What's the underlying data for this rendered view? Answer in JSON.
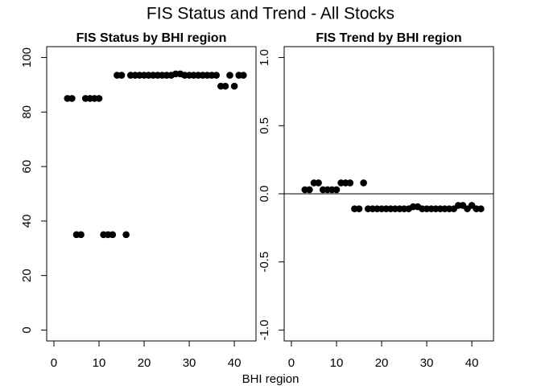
{
  "title": "FIS Status and Trend - All Stocks",
  "xlabel": "BHI region",
  "chart_data": [
    {
      "type": "scatter",
      "title": "FIS Status by BHI region",
      "color": "#000000",
      "x": [
        3,
        4,
        5,
        6,
        7,
        8,
        9,
        10,
        11,
        12,
        13,
        14,
        15,
        16,
        17,
        18,
        19,
        20,
        21,
        22,
        23,
        24,
        25,
        26,
        27,
        28,
        29,
        30,
        31,
        32,
        33,
        34,
        35,
        36,
        37,
        38,
        39,
        40,
        41,
        42
      ],
      "values": [
        85,
        85,
        35,
        35,
        85,
        85,
        85,
        85,
        35,
        35,
        35,
        93.5,
        93.5,
        35,
        93.5,
        93.5,
        93.5,
        93.5,
        93.5,
        93.5,
        93.5,
        93.5,
        93.5,
        93.5,
        94,
        94,
        93.5,
        93.5,
        93.5,
        93.5,
        93.5,
        93.5,
        93.5,
        93.5,
        89.5,
        89.5,
        93.5,
        89.5,
        93.5,
        93.5
      ],
      "xlim": [
        -1.6,
        44.8
      ],
      "xticks": [
        0,
        10,
        20,
        30,
        40
      ],
      "ylim": [
        -4,
        104
      ],
      "yticks": [
        0,
        20,
        40,
        60,
        80,
        100
      ]
    },
    {
      "type": "scatter",
      "title": "FIS Trend by BHI region",
      "color": "#000000",
      "hline": 0,
      "x": [
        3,
        4,
        5,
        6,
        7,
        8,
        9,
        10,
        11,
        12,
        13,
        14,
        15,
        16,
        17,
        18,
        19,
        20,
        21,
        22,
        23,
        24,
        25,
        26,
        27,
        28,
        29,
        30,
        31,
        32,
        33,
        34,
        35,
        36,
        37,
        38,
        39,
        40,
        41,
        42
      ],
      "values": [
        0.03,
        0.03,
        0.08,
        0.08,
        0.03,
        0.03,
        0.03,
        0.03,
        0.08,
        0.08,
        0.08,
        -0.11,
        -0.11,
        0.08,
        -0.11,
        -0.11,
        -0.11,
        -0.11,
        -0.11,
        -0.11,
        -0.11,
        -0.11,
        -0.11,
        -0.11,
        -0.095,
        -0.095,
        -0.11,
        -0.11,
        -0.11,
        -0.11,
        -0.11,
        -0.11,
        -0.11,
        -0.11,
        -0.085,
        -0.085,
        -0.11,
        -0.085,
        -0.11,
        -0.11
      ],
      "xlim": [
        -1.6,
        44.8
      ],
      "xticks": [
        0,
        10,
        20,
        30,
        40
      ],
      "ylim": [
        -1.08,
        1.08
      ],
      "yticks": [
        {
          "value": 1,
          "label": "1.0"
        },
        0.5,
        {
          "value": 0,
          "label": "0.0"
        },
        -0.5,
        {
          "value": -1,
          "label": "-1.0"
        }
      ]
    }
  ]
}
